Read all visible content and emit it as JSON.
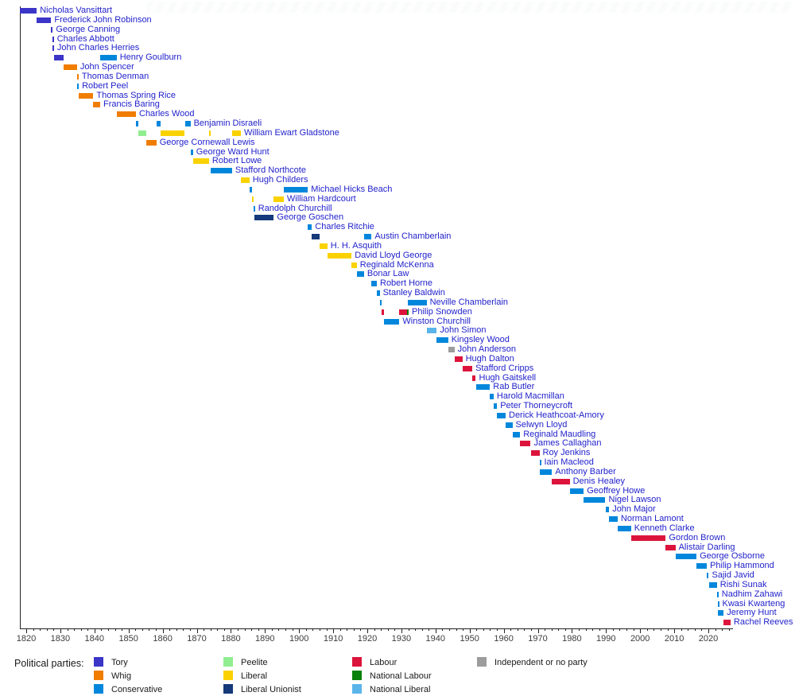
{
  "chart_data": {
    "type": "timeline",
    "description_of_content": "Gantt-style timeline of UK Chancellors, one row per person, bars coloured by political party",
    "label_color": "#2222CC",
    "axis": {
      "start_year": 1818.14,
      "end_year": 2027.2,
      "major_ticks": [
        1820,
        1830,
        1840,
        1850,
        1860,
        1870,
        1880,
        1890,
        1900,
        1910,
        1920,
        1930,
        1940,
        1950,
        1960,
        1970,
        1980,
        1990,
        2000,
        2010,
        2020
      ],
      "minor_start": 1820,
      "minor_end": 2026,
      "minor_step": 2
    },
    "party_colors": {
      "Tory": "#3B35C8",
      "Whig": "#F07D00",
      "Conservative": "#0087DC",
      "Peelite": "#90EE90",
      "Liberal": "#FAD201",
      "Liberal Unionist": "#15397A",
      "Labour": "#DC143C",
      "National Labour": "#0A810A",
      "National Liberal": "#5BB5EA",
      "Independent or no party": "#9C9C9C"
    },
    "people": [
      {
        "name": "Nicholas Vansittart",
        "segments": [
          {
            "party": "Tory",
            "start": 1818.14,
            "end": 1823.08
          }
        ]
      },
      {
        "name": "Frederick John Robinson",
        "segments": [
          {
            "party": "Tory",
            "start": 1823.08,
            "end": 1827.33
          }
        ]
      },
      {
        "name": "George Canning",
        "segments": [
          {
            "party": "Tory",
            "start": 1827.33,
            "end": 1827.62
          }
        ]
      },
      {
        "name": "Charles Abbott",
        "segments": [
          {
            "party": "Tory",
            "start": 1827.62,
            "end": 1827.72
          }
        ]
      },
      {
        "name": "John Charles Herries",
        "segments": [
          {
            "party": "Tory",
            "start": 1827.67,
            "end": 1828.08
          }
        ]
      },
      {
        "name": "Henry Goulburn",
        "segments": [
          {
            "party": "Tory",
            "start": 1828.08,
            "end": 1830.9
          },
          {
            "party": "Conservative",
            "start": 1841.68,
            "end": 1846.5
          }
        ]
      },
      {
        "name": "John Spencer",
        "segments": [
          {
            "party": "Whig",
            "start": 1830.9,
            "end": 1834.9
          }
        ]
      },
      {
        "name": "Thomas Denman",
        "segments": [
          {
            "party": "Whig",
            "start": 1834.9,
            "end": 1835.0
          }
        ]
      },
      {
        "name": "Robert Peel",
        "segments": [
          {
            "party": "Conservative",
            "start": 1834.95,
            "end": 1835.33
          }
        ]
      },
      {
        "name": "Thomas Spring Rice",
        "segments": [
          {
            "party": "Whig",
            "start": 1835.33,
            "end": 1839.67
          }
        ]
      },
      {
        "name": "Francis Baring",
        "segments": [
          {
            "party": "Whig",
            "start": 1839.67,
            "end": 1841.68
          }
        ]
      },
      {
        "name": "Charles Wood",
        "segments": [
          {
            "party": "Whig",
            "start": 1846.5,
            "end": 1852.17
          }
        ]
      },
      {
        "name": "Benjamin Disraeli",
        "segments": [
          {
            "party": "Conservative",
            "start": 1852.17,
            "end": 1852.95
          },
          {
            "party": "Conservative",
            "start": 1858.17,
            "end": 1859.45
          },
          {
            "party": "Conservative",
            "start": 1866.5,
            "end": 1868.17
          }
        ]
      },
      {
        "name": "William Ewart Gladstone",
        "segments": [
          {
            "party": "Peelite",
            "start": 1852.95,
            "end": 1855.17
          },
          {
            "party": "Liberal",
            "start": 1859.45,
            "end": 1866.5
          },
          {
            "party": "Liberal",
            "start": 1873.6,
            "end": 1874.17
          },
          {
            "party": "Liberal",
            "start": 1880.35,
            "end": 1882.95
          }
        ]
      },
      {
        "name": "George Cornewall Lewis",
        "segments": [
          {
            "party": "Whig",
            "start": 1855.17,
            "end": 1858.17
          }
        ]
      },
      {
        "name": "George Ward Hunt",
        "segments": [
          {
            "party": "Conservative",
            "start": 1868.17,
            "end": 1868.92
          }
        ]
      },
      {
        "name": "Robert Lowe",
        "segments": [
          {
            "party": "Liberal",
            "start": 1868.92,
            "end": 1873.6
          }
        ]
      },
      {
        "name": "Stafford Northcote",
        "segments": [
          {
            "party": "Conservative",
            "start": 1874.17,
            "end": 1880.35
          }
        ]
      },
      {
        "name": "Hugh Childers",
        "segments": [
          {
            "party": "Liberal",
            "start": 1882.95,
            "end": 1885.45
          }
        ]
      },
      {
        "name": "Michael Hicks Beach",
        "segments": [
          {
            "party": "Conservative",
            "start": 1885.45,
            "end": 1886.1
          },
          {
            "party": "Conservative",
            "start": 1895.5,
            "end": 1902.6
          }
        ]
      },
      {
        "name": "William Hardcourt",
        "segments": [
          {
            "party": "Liberal",
            "start": 1886.1,
            "end": 1886.6
          },
          {
            "party": "Liberal",
            "start": 1892.6,
            "end": 1895.5
          }
        ]
      },
      {
        "name": "Randolph Churchill",
        "segments": [
          {
            "party": "Conservative",
            "start": 1886.6,
            "end": 1887.0
          }
        ]
      },
      {
        "name": "George Goschen",
        "segments": [
          {
            "party": "Liberal Unionist",
            "start": 1887.0,
            "end": 1892.6
          }
        ]
      },
      {
        "name": "Charles Ritchie",
        "segments": [
          {
            "party": "Conservative",
            "start": 1902.6,
            "end": 1903.75
          }
        ]
      },
      {
        "name": "Austin Chamberlain",
        "segments": [
          {
            "party": "Liberal Unionist",
            "start": 1903.75,
            "end": 1905.92
          },
          {
            "party": "Conservative",
            "start": 1919.05,
            "end": 1921.27
          }
        ]
      },
      {
        "name": "H. H. Asquith",
        "segments": [
          {
            "party": "Liberal",
            "start": 1905.92,
            "end": 1908.3
          }
        ]
      },
      {
        "name": "David Lloyd George",
        "segments": [
          {
            "party": "Liberal",
            "start": 1908.3,
            "end": 1915.4
          }
        ]
      },
      {
        "name": "Reginald McKenna",
        "segments": [
          {
            "party": "Liberal",
            "start": 1915.4,
            "end": 1916.92
          }
        ]
      },
      {
        "name": "Bonar Law",
        "segments": [
          {
            "party": "Conservative",
            "start": 1916.92,
            "end": 1919.05
          }
        ]
      },
      {
        "name": "Robert Horne",
        "segments": [
          {
            "party": "Conservative",
            "start": 1921.27,
            "end": 1922.8
          }
        ]
      },
      {
        "name": "Stanley Baldwin",
        "segments": [
          {
            "party": "Conservative",
            "start": 1922.8,
            "end": 1923.65
          }
        ]
      },
      {
        "name": "Neville Chamberlain",
        "segments": [
          {
            "party": "Conservative",
            "start": 1923.65,
            "end": 1924.08
          },
          {
            "party": "Conservative",
            "start": 1931.85,
            "end": 1937.4
          }
        ]
      },
      {
        "name": "Philip Snowden",
        "segments": [
          {
            "party": "Labour",
            "start": 1924.08,
            "end": 1924.85
          },
          {
            "party": "Labour",
            "start": 1929.42,
            "end": 1931.65
          },
          {
            "party": "National Labour",
            "start": 1931.65,
            "end": 1931.9
          }
        ]
      },
      {
        "name": "Winston Churchill",
        "segments": [
          {
            "party": "Conservative",
            "start": 1924.85,
            "end": 1929.42
          }
        ]
      },
      {
        "name": "John Simon",
        "segments": [
          {
            "party": "National Liberal",
            "start": 1937.4,
            "end": 1940.37
          }
        ]
      },
      {
        "name": "Kingsley Wood",
        "segments": [
          {
            "party": "Conservative",
            "start": 1940.37,
            "end": 1943.72
          }
        ]
      },
      {
        "name": "John Anderson",
        "segments": [
          {
            "party": "Independent or no party",
            "start": 1943.72,
            "end": 1945.56
          }
        ]
      },
      {
        "name": "Hugh Dalton",
        "segments": [
          {
            "party": "Labour",
            "start": 1945.56,
            "end": 1947.88
          }
        ]
      },
      {
        "name": "Stafford Cripps",
        "segments": [
          {
            "party": "Labour",
            "start": 1947.88,
            "end": 1950.8
          }
        ]
      },
      {
        "name": "Hugh Gaitskell",
        "segments": [
          {
            "party": "Labour",
            "start": 1950.8,
            "end": 1951.82
          }
        ]
      },
      {
        "name": "Rab Butler",
        "segments": [
          {
            "party": "Conservative",
            "start": 1951.82,
            "end": 1955.97
          }
        ]
      },
      {
        "name": "Harold Macmillan",
        "segments": [
          {
            "party": "Conservative",
            "start": 1955.97,
            "end": 1957.05
          }
        ]
      },
      {
        "name": "Peter Thorneycroft",
        "segments": [
          {
            "party": "Conservative",
            "start": 1957.05,
            "end": 1958.05
          }
        ]
      },
      {
        "name": "Derick Heathcoat-Amory",
        "segments": [
          {
            "party": "Conservative",
            "start": 1958.05,
            "end": 1960.56
          }
        ]
      },
      {
        "name": "Selwyn Lloyd",
        "segments": [
          {
            "party": "Conservative",
            "start": 1960.56,
            "end": 1962.54
          }
        ]
      },
      {
        "name": "Reginald Maudling",
        "segments": [
          {
            "party": "Conservative",
            "start": 1962.54,
            "end": 1964.8
          }
        ]
      },
      {
        "name": "James Callaghan",
        "segments": [
          {
            "party": "Labour",
            "start": 1964.8,
            "end": 1967.9
          }
        ]
      },
      {
        "name": "Roy Jenkins",
        "segments": [
          {
            "party": "Labour",
            "start": 1967.9,
            "end": 1970.47
          }
        ]
      },
      {
        "name": "Iain Macleod",
        "segments": [
          {
            "party": "Conservative",
            "start": 1970.47,
            "end": 1970.56
          }
        ]
      },
      {
        "name": "Anthony Barber",
        "segments": [
          {
            "party": "Conservative",
            "start": 1970.56,
            "end": 1974.17
          }
        ]
      },
      {
        "name": "Denis Healey",
        "segments": [
          {
            "party": "Labour",
            "start": 1974.17,
            "end": 1979.35
          }
        ]
      },
      {
        "name": "Geoffrey Howe",
        "segments": [
          {
            "party": "Conservative",
            "start": 1979.35,
            "end": 1983.45
          }
        ]
      },
      {
        "name": "Nigel Lawson",
        "segments": [
          {
            "party": "Conservative",
            "start": 1983.45,
            "end": 1989.82
          }
        ]
      },
      {
        "name": "John Major",
        "segments": [
          {
            "party": "Conservative",
            "start": 1989.82,
            "end": 1990.92
          }
        ]
      },
      {
        "name": "Norman Lamont",
        "segments": [
          {
            "party": "Conservative",
            "start": 1990.92,
            "end": 1993.4
          }
        ]
      },
      {
        "name": "Kenneth Clarke",
        "segments": [
          {
            "party": "Conservative",
            "start": 1993.4,
            "end": 1997.35
          }
        ]
      },
      {
        "name": "Gordon Brown",
        "segments": [
          {
            "party": "Labour",
            "start": 1997.35,
            "end": 2007.5
          }
        ]
      },
      {
        "name": "Alistair Darling",
        "segments": [
          {
            "party": "Labour",
            "start": 2007.5,
            "end": 2010.36
          }
        ]
      },
      {
        "name": "George Osborne",
        "segments": [
          {
            "party": "Conservative",
            "start": 2010.36,
            "end": 2016.54
          }
        ]
      },
      {
        "name": "Philip Hammond",
        "segments": [
          {
            "party": "Conservative",
            "start": 2016.54,
            "end": 2019.56
          }
        ]
      },
      {
        "name": "Sajid Javid",
        "segments": [
          {
            "party": "Conservative",
            "start": 2019.56,
            "end": 2020.12
          }
        ]
      },
      {
        "name": "Rishi Sunak",
        "segments": [
          {
            "party": "Conservative",
            "start": 2020.12,
            "end": 2022.52
          }
        ]
      },
      {
        "name": "Nadhim Zahawi",
        "segments": [
          {
            "party": "Conservative",
            "start": 2022.52,
            "end": 2022.68
          }
        ]
      },
      {
        "name": "Kwasi Kwarteng",
        "segments": [
          {
            "party": "Conservative",
            "start": 2022.68,
            "end": 2022.79
          }
        ]
      },
      {
        "name": "Jeremy Hunt",
        "segments": [
          {
            "party": "Conservative",
            "start": 2022.79,
            "end": 2024.5
          }
        ]
      },
      {
        "name": "Rachel Reeves",
        "segments": [
          {
            "party": "Labour",
            "start": 2024.5,
            "end": 2026.5
          }
        ]
      }
    ]
  },
  "legend": {
    "title": "Political parties:",
    "columns": [
      [
        "Tory",
        "Whig",
        "Conservative"
      ],
      [
        "Peelite",
        "Liberal",
        "Liberal Unionist"
      ],
      [
        "Labour",
        "National Labour",
        "National Liberal"
      ],
      [
        "Independent or no party"
      ]
    ]
  }
}
